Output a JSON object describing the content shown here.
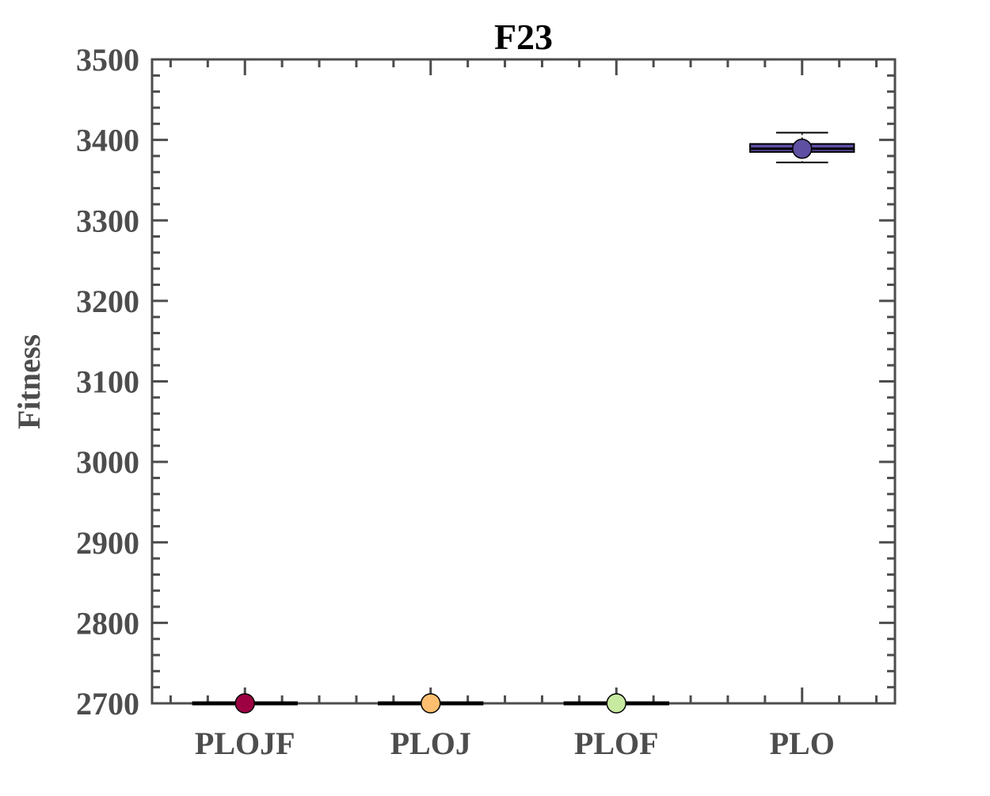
{
  "chart_data": {
    "type": "box",
    "title": "F23",
    "xlabel": "",
    "ylabel": "Fitness",
    "ylim": [
      2700,
      3500
    ],
    "yticks": [
      "2700",
      "2800",
      "2900",
      "3000",
      "3100",
      "3200",
      "3300",
      "3400",
      "3500"
    ],
    "categories": [
      "PLOJF",
      "PLOJ",
      "PLOF",
      "PLO"
    ],
    "colors": [
      "#9e0142",
      "#fdbf6f",
      "#c7e9a0",
      "#5e4fa2"
    ],
    "series": [
      {
        "category": "PLOJF",
        "min": 2700,
        "q1": 2700,
        "median": 2700,
        "q3": 2700,
        "max": 2700,
        "mean": 2700
      },
      {
        "category": "PLOJ",
        "min": 2700,
        "q1": 2700,
        "median": 2700,
        "q3": 2700,
        "max": 2700,
        "mean": 2700
      },
      {
        "category": "PLOF",
        "min": 2700,
        "q1": 2700,
        "median": 2700,
        "q3": 2700,
        "max": 2700,
        "mean": 2700
      },
      {
        "category": "PLO",
        "min": 3372,
        "q1": 3385,
        "median": 3389,
        "q3": 3395,
        "max": 3409,
        "mean": 3389
      }
    ],
    "grid": false,
    "legend": "none"
  }
}
